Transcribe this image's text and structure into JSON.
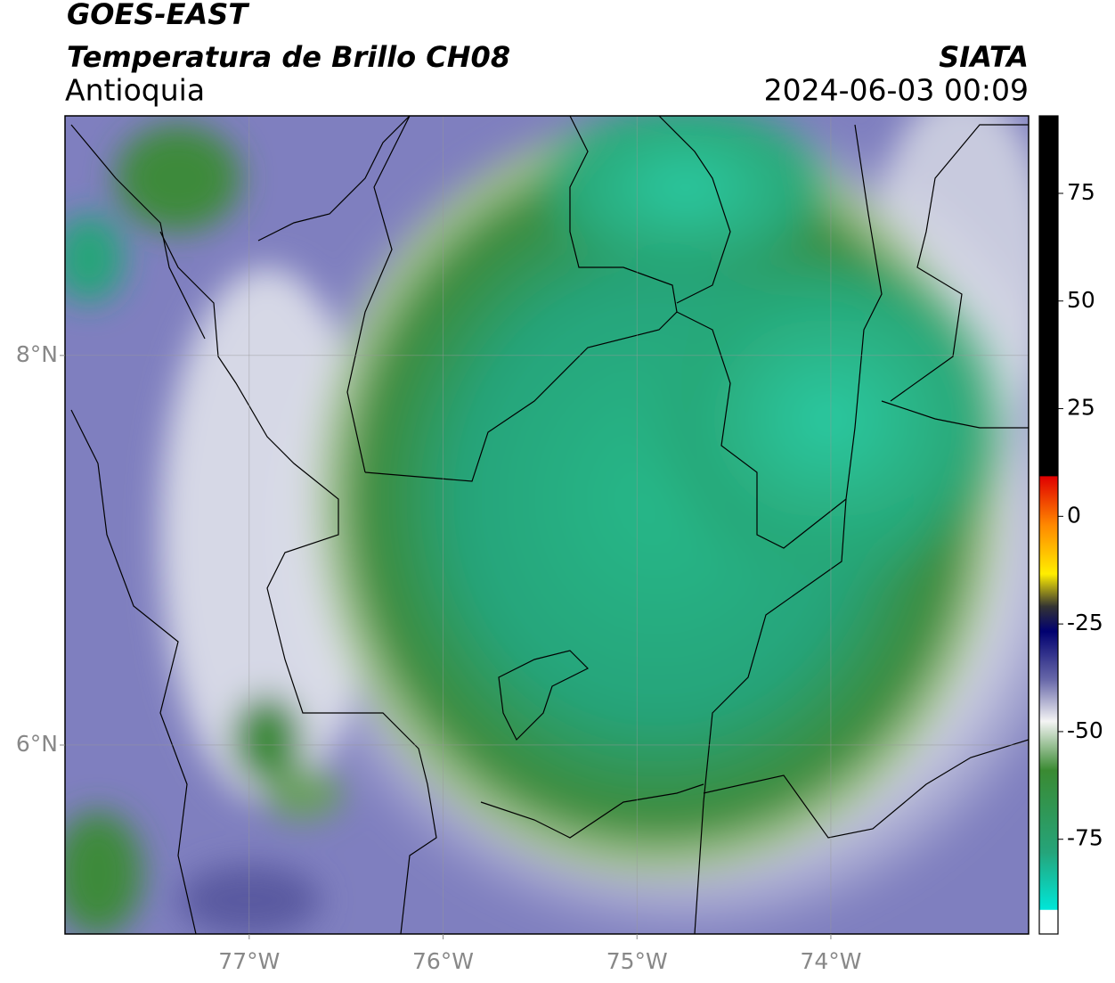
{
  "header": {
    "satellite": "GOES-EAST",
    "product": "Temperatura de Brillo CH08",
    "region": "Antioquia",
    "agency": "SIATA",
    "datetime": "2024-06-03 00:09"
  },
  "map": {
    "xlim": [
      -77.95,
      -72.98
    ],
    "ylim": [
      5.03,
      9.23
    ],
    "xticks": [
      {
        "value": -77,
        "label": "77°W"
      },
      {
        "value": -76,
        "label": "76°W"
      },
      {
        "value": -75,
        "label": "75°W"
      },
      {
        "value": -74,
        "label": "74°W"
      }
    ],
    "yticks": [
      {
        "value": 8,
        "label": "8°N"
      },
      {
        "value": 6,
        "label": "6°N"
      }
    ]
  },
  "colorbar": {
    "lim": [
      -97,
      93
    ],
    "ticks": [
      75,
      50,
      25,
      0,
      -25,
      -50,
      -75
    ]
  }
}
